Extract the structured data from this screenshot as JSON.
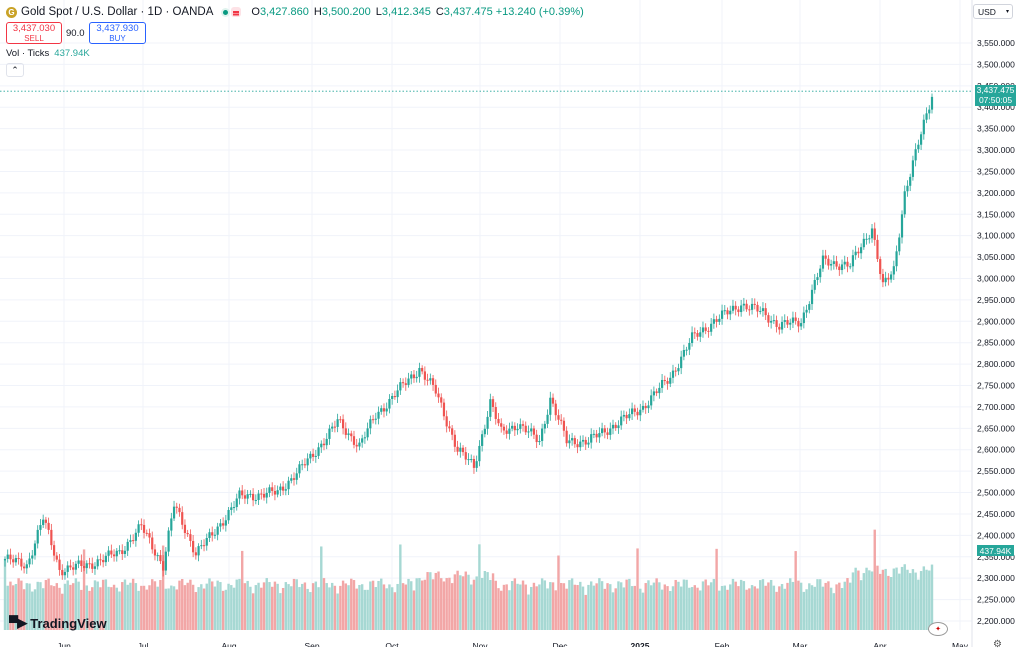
{
  "header": {
    "symbol_icon": "gold-coin-icon",
    "title": "Gold Spot / U.S. Dollar · 1D · OANDA",
    "ohlc": [
      {
        "k": "O",
        "v": "3,427.860"
      },
      {
        "k": "H",
        "v": "3,500.200"
      },
      {
        "k": "L",
        "v": "3,412.345"
      },
      {
        "k": "C",
        "v": "3,437.475"
      }
    ],
    "change": "+13.240 (+0.39%)"
  },
  "trade": {
    "sell_price": "3,437.030",
    "sell_label": "SELL",
    "spread": "90.0",
    "buy_price": "3,437.930",
    "buy_label": "BUY"
  },
  "volume_legend": {
    "label": "Vol · Ticks",
    "value": "437.94K"
  },
  "currency_selector": "USD",
  "price_tag": {
    "price": "3,437.475",
    "countdown": "07:50:05"
  },
  "volume_tag": "437.94K",
  "brand": "TradingView",
  "colors": {
    "up": "#26a69a",
    "down": "#ef5350",
    "vol_up": "#a6d8d3",
    "vol_down": "#f2a6a6",
    "line": "#26a69a"
  },
  "price_axis_ticks": [
    "3,550.000",
    "3,500.000",
    "3,450.000",
    "3,400.000",
    "3,350.000",
    "3,300.000",
    "3,250.000",
    "3,200.000",
    "3,150.000",
    "3,100.000",
    "3,050.000",
    "3,000.000",
    "2,950.000",
    "2,900.000",
    "2,850.000",
    "2,800.000",
    "2,750.000",
    "2,700.000",
    "2,650.000",
    "2,600.000",
    "2,550.000",
    "2,500.000",
    "2,450.000",
    "2,400.000",
    "2,350.000",
    "2,300.000",
    "2,250.000",
    "2,200.000"
  ],
  "time_axis_labels": [
    {
      "label": "Jun",
      "bold": false
    },
    {
      "label": "Jul",
      "bold": false
    },
    {
      "label": "Aug",
      "bold": false
    },
    {
      "label": "Sep",
      "bold": false
    },
    {
      "label": "Oct",
      "bold": false
    },
    {
      "label": "Nov",
      "bold": false
    },
    {
      "label": "Dec",
      "bold": false
    },
    {
      "label": "2025",
      "bold": true
    },
    {
      "label": "Feb",
      "bold": false
    },
    {
      "label": "Mar",
      "bold": false
    },
    {
      "label": "Apr",
      "bold": false
    },
    {
      "label": "May",
      "bold": false
    }
  ],
  "chart_data": {
    "type": "line",
    "title": "Gold Spot / U.S. Dollar · 1D · OANDA",
    "xlabel": "",
    "ylabel": "USD",
    "ylim": [
      2175,
      3575
    ],
    "x": [
      "Jun",
      "Jul",
      "Aug",
      "Sep",
      "Oct",
      "Nov",
      "Dec",
      "2025",
      "Feb",
      "Mar",
      "Apr",
      "May"
    ],
    "series": [
      {
        "name": "Close (approx.)",
        "values": [
          2330,
          2360,
          2450,
          2500,
          2650,
          2740,
          2650,
          2630,
          2800,
          2900,
          3030,
          3437
        ]
      },
      {
        "name": "Vol · Ticks",
        "values": [
          250,
          260,
          280,
          270,
          300,
          320,
          310,
          280,
          320,
          300,
          360,
          438
        ]
      }
    ]
  }
}
